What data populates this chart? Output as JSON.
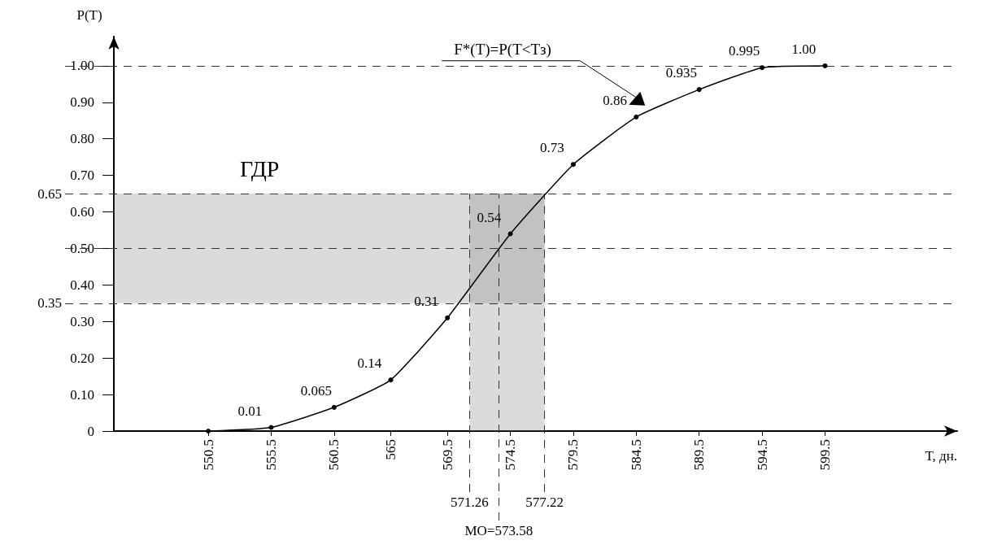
{
  "chart_data": {
    "type": "line",
    "xlabel": "T, дн.",
    "ylabel": "P(T)",
    "x": [
      550.5,
      555.5,
      560.5,
      565,
      569.5,
      574.5,
      579.5,
      584.5,
      589.5,
      594.5,
      599.5
    ],
    "series": [
      {
        "color": "#000000",
        "values": [
          0,
          0.01,
          0.065,
          0.14,
          0.31,
          0.54,
          0.73,
          0.86,
          0.935,
          0.995,
          1.0
        ],
        "value_labels": [
          null,
          "0.01",
          "0.065",
          "0.14",
          "0.31",
          "0.54",
          "0.73",
          "0.86",
          "0.935",
          "0.995",
          "1.00"
        ]
      }
    ],
    "xlim": [
      543,
      610
    ],
    "xticks": [
      550.5,
      555.5,
      560.5,
      565,
      569.5,
      574.5,
      579.5,
      584.5,
      589.5,
      594.5,
      599.5
    ],
    "ylim": [
      0,
      1.08
    ],
    "yticks": [
      0,
      {
        "value": 0.1,
        "label": "0.10"
      },
      {
        "value": 0.2,
        "label": "0.20"
      },
      {
        "value": 0.3,
        "label": "0.30"
      },
      {
        "value": 0.4,
        "label": "0.40"
      },
      {
        "value": 0.5,
        "label": "0.50"
      },
      {
        "value": 0.6,
        "label": "0.60"
      },
      {
        "value": 0.7,
        "label": "0.70"
      },
      {
        "value": 0.8,
        "label": "0.80"
      },
      {
        "value": 0.9,
        "label": "0.90"
      },
      {
        "value": 1.0,
        "label": "1.00"
      }
    ],
    "bands": [
      {
        "axis": "y",
        "from": 0.35,
        "to": 0.65,
        "label": "ГДР",
        "color": "#888888"
      },
      {
        "axis": "x",
        "from": 571.26,
        "to": 577.22,
        "color": "#888888"
      }
    ],
    "ref_lines": [
      {
        "axis": "y",
        "value": 0.65,
        "label": "0.65",
        "line_style": "dashed"
      },
      {
        "axis": "y",
        "value": 0.35,
        "label": "0.35",
        "line_style": "dashed"
      },
      {
        "axis": "y",
        "value": 0.5,
        "line_style": "dashed"
      },
      {
        "axis": "y",
        "value": 1.0,
        "line_style": "dashed"
      },
      {
        "axis": "x",
        "value": 571.26,
        "label": "571.26",
        "line_style": "dashed"
      },
      {
        "axis": "x",
        "value": 577.22,
        "label": "577.22",
        "line_style": "dashed"
      },
      {
        "axis": "x",
        "value": 573.58,
        "label": "МО=573.58",
        "line_style": "dashed"
      }
    ],
    "annotations": [
      "F*(T)=P(T<Tз)"
    ],
    "marker": "circle",
    "grid": false
  }
}
